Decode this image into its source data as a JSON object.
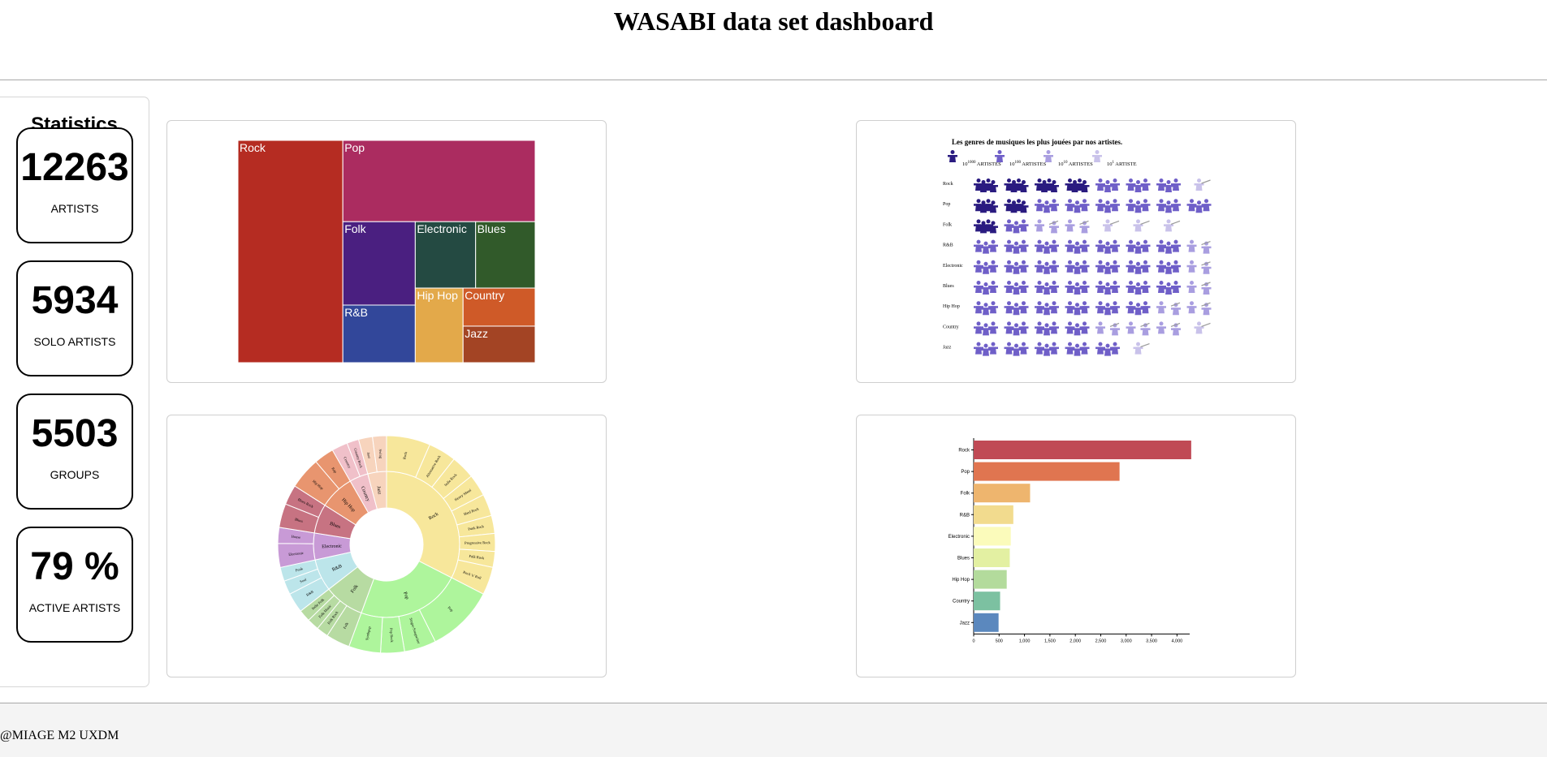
{
  "page": {
    "title": "WASABI data set dashboard"
  },
  "stats": {
    "title": "Statistics",
    "cards": [
      {
        "value": "12263",
        "label": "ARTISTS"
      },
      {
        "value": "5934",
        "label": "SOLO ARTISTS"
      },
      {
        "value": "5503",
        "label": "GROUPS"
      },
      {
        "value": "79 %",
        "label": "ACTIVE ARTISTS"
      }
    ]
  },
  "footer": {
    "text": "@MIAGE M2 UXDM"
  },
  "chart_data": [
    {
      "type": "treemap",
      "categories": [
        "Rock",
        "Pop",
        "Folk",
        "R&B",
        "Electronic",
        "Blues",
        "Hip Hop",
        "Country",
        "Jazz"
      ],
      "values": [
        4250,
        2850,
        1100,
        760,
        730,
        720,
        650,
        500,
        480
      ],
      "colors": [
        "#b52c22",
        "#ab2c60",
        "#4a1f80",
        "#32479a",
        "#244a42",
        "#315a2a",
        "#e3a94a",
        "#cf5a28",
        "#a34424"
      ]
    },
    {
      "type": "pictogram",
      "title": "Les genres de musiques les plus jouées par nos artistes.",
      "legend": [
        {
          "exp": "1000",
          "label": "ARTISTES"
        },
        {
          "exp": "100",
          "label": "ARTISTES"
        },
        {
          "exp": "10",
          "label": "ARTISTES"
        },
        {
          "exp": "1",
          "label": "ARTISTE"
        }
      ],
      "categories": [
        "Rock",
        "Pop",
        "Folk",
        "R&B",
        "Electronic",
        "Blues",
        "Hip Hop",
        "Country",
        "Jazz"
      ],
      "icons": [
        [
          1000,
          1000,
          1000,
          1000,
          100,
          100,
          100,
          1
        ],
        [
          1000,
          1000,
          100,
          100,
          100,
          100,
          100,
          100
        ],
        [
          1000,
          100,
          10,
          10,
          1,
          1,
          1
        ],
        [
          100,
          100,
          100,
          100,
          100,
          100,
          100,
          10
        ],
        [
          100,
          100,
          100,
          100,
          100,
          100,
          100,
          10
        ],
        [
          100,
          100,
          100,
          100,
          100,
          100,
          100,
          10
        ],
        [
          100,
          100,
          100,
          100,
          100,
          100,
          10,
          10
        ],
        [
          100,
          100,
          100,
          100,
          10,
          10,
          10,
          1
        ],
        [
          100,
          100,
          100,
          100,
          100,
          1
        ]
      ],
      "colors": {
        "1000": "#2a1b80",
        "100": "#6f5fc8",
        "10": "#a99ee0",
        "1": "#c9c2ea"
      }
    },
    {
      "type": "sunburst",
      "inner": [
        {
          "name": "Rock",
          "value": 110,
          "color": "#f7e79b"
        },
        {
          "name": "Pop",
          "value": 78,
          "color": "#aef59c"
        },
        {
          "name": "Folk",
          "value": 30,
          "color": "#b7dba2"
        },
        {
          "name": "R&B",
          "value": 24,
          "color": "#bce5ea"
        },
        {
          "name": "Electronic",
          "value": 20,
          "color": "#c89ad6"
        },
        {
          "name": "Blues",
          "value": 22,
          "color": "#c77382"
        },
        {
          "name": "Hip Hop",
          "value": 26,
          "color": "#e8956f"
        },
        {
          "name": "Country",
          "value": 14,
          "color": "#f0c0c9"
        },
        {
          "name": "Jazz",
          "value": 14,
          "color": "#f7d4bd"
        }
      ],
      "outer": [
        {
          "name": "Rock",
          "parent": 0,
          "value": 22
        },
        {
          "name": "Alternative Rock",
          "parent": 0,
          "value": 14
        },
        {
          "name": "Indie Rock",
          "parent": 0,
          "value": 12
        },
        {
          "name": "Heavy Metal",
          "parent": 0,
          "value": 11
        },
        {
          "name": "Hard Rock",
          "parent": 0,
          "value": 11
        },
        {
          "name": "Punk Rock",
          "parent": 0,
          "value": 9
        },
        {
          "name": "Progressive Rock",
          "parent": 0,
          "value": 9
        },
        {
          "name": "Folk Rock",
          "parent": 0,
          "value": 8
        },
        {
          "name": "Rock 'n' Roll",
          "parent": 0,
          "value": 14
        },
        {
          "name": "Pop",
          "parent": 1,
          "value": 34
        },
        {
          "name": "Singer-Songwriter",
          "parent": 1,
          "value": 16
        },
        {
          "name": "Pop Rock",
          "parent": 1,
          "value": 12
        },
        {
          "name": "Synthpop",
          "parent": 1,
          "value": 16
        },
        {
          "name": "Folk",
          "parent": 2,
          "value": 12
        },
        {
          "name": "Folk Rock",
          "parent": 2,
          "value": 6
        },
        {
          "name": "Folk Music",
          "parent": 2,
          "value": 6
        },
        {
          "name": "Indie Folk",
          "parent": 2,
          "value": 6
        },
        {
          "name": "R&B",
          "parent": 3,
          "value": 10
        },
        {
          "name": "Soul",
          "parent": 3,
          "value": 7
        },
        {
          "name": "Funk",
          "parent": 3,
          "value": 7
        },
        {
          "name": "Electronic",
          "parent": 4,
          "value": 12
        },
        {
          "name": "House",
          "parent": 4,
          "value": 8
        },
        {
          "name": "Blues",
          "parent": 5,
          "value": 12
        },
        {
          "name": "Blues Rock",
          "parent": 5,
          "value": 10
        },
        {
          "name": "Hip Hop",
          "parent": 6,
          "value": 16
        },
        {
          "name": "Rap",
          "parent": 6,
          "value": 10
        },
        {
          "name": "Country",
          "parent": 7,
          "value": 8
        },
        {
          "name": "Country Rock",
          "parent": 7,
          "value": 6
        },
        {
          "name": "Jazz",
          "parent": 8,
          "value": 7
        },
        {
          "name": "Swing",
          "parent": 8,
          "value": 7
        }
      ]
    },
    {
      "type": "bar",
      "orientation": "horizontal",
      "categories": [
        "Rock",
        "Pop",
        "Folk",
        "R&B",
        "Electronic",
        "Blues",
        "Hip Hop",
        "Country",
        "Jazz"
      ],
      "values": [
        4280,
        2870,
        1110,
        780,
        730,
        710,
        650,
        520,
        490
      ],
      "colors": [
        "#c04a55",
        "#e07550",
        "#eeb56e",
        "#f2db8e",
        "#fbfbbb",
        "#e3f0a2",
        "#b3db9c",
        "#7cc1a1",
        "#5b88be"
      ],
      "xlim": [
        0,
        4250
      ],
      "xticks": [
        "0",
        "500",
        "1,000",
        "1,500",
        "2,000",
        "2,500",
        "3,000",
        "3,500",
        "4,000"
      ]
    }
  ]
}
